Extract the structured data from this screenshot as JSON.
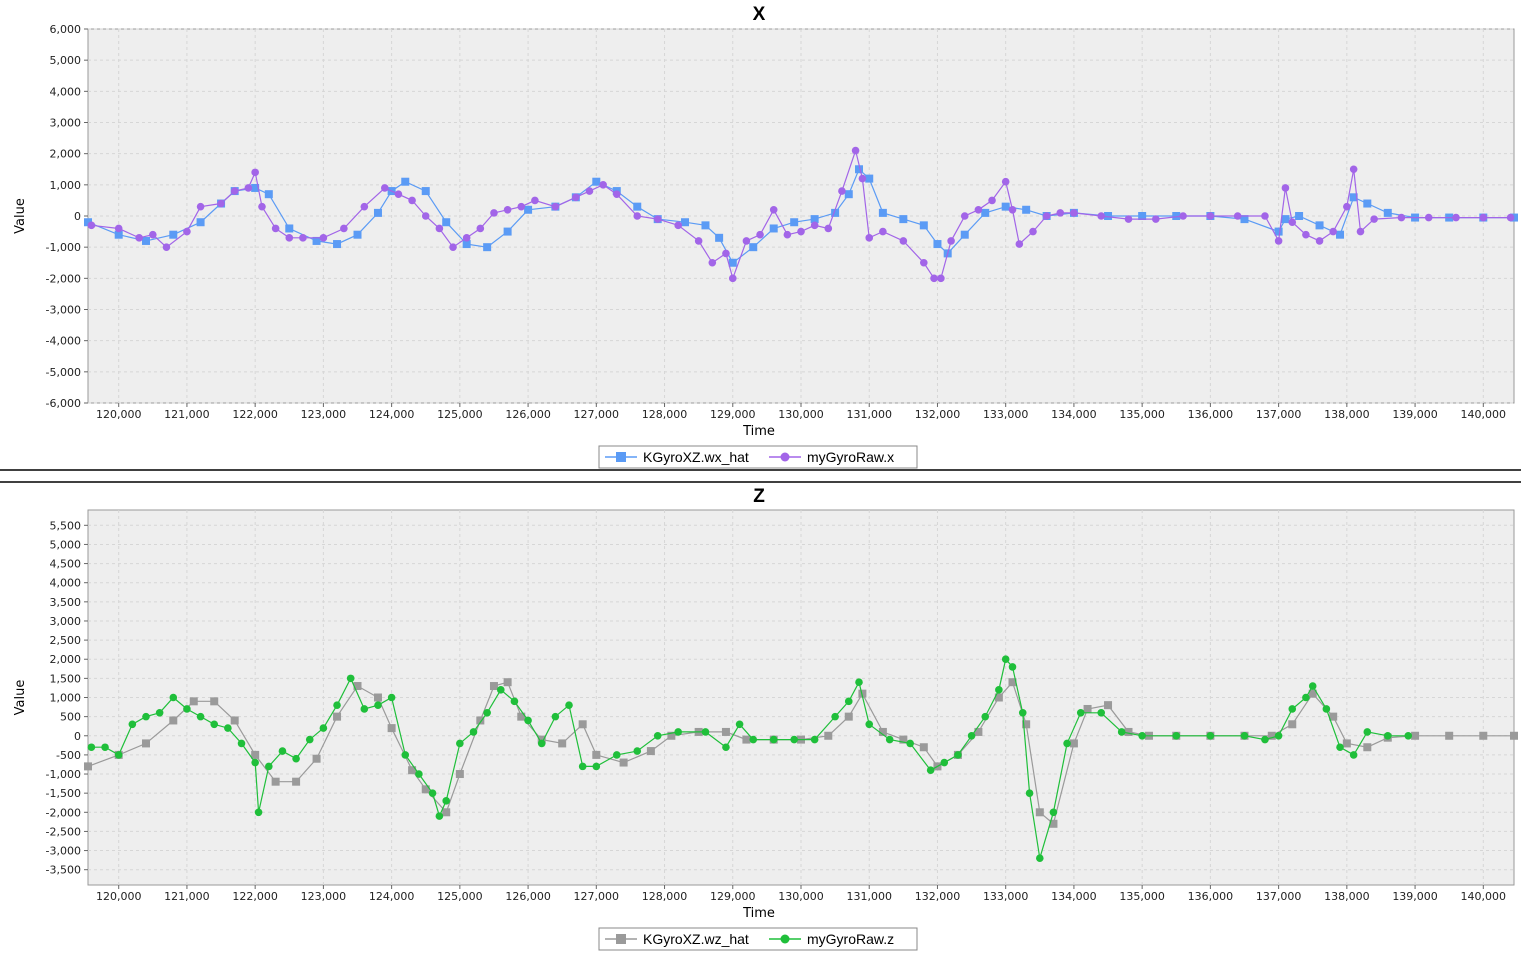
{
  "chart_data": [
    {
      "type": "line",
      "title": "X",
      "xlabel": "Time",
      "ylabel": "Value",
      "xlim": [
        119550,
        140450
      ],
      "ylim": [
        -6000,
        6000
      ],
      "x_ticks": [
        120000,
        121000,
        122000,
        123000,
        124000,
        125000,
        126000,
        127000,
        128000,
        129000,
        130000,
        131000,
        132000,
        133000,
        134000,
        135000,
        136000,
        137000,
        138000,
        139000,
        140000
      ],
      "x_tick_labels": [
        "120,000",
        "121,000",
        "122,000",
        "123,000",
        "124,000",
        "125,000",
        "126,000",
        "127,000",
        "128,000",
        "129,000",
        "130,000",
        "131,000",
        "132,000",
        "133,000",
        "134,000",
        "135,000",
        "136,000",
        "137,000",
        "138,000",
        "139,000",
        "140,000"
      ],
      "y_ticks": [
        -6000,
        -5000,
        -4000,
        -3000,
        -2000,
        -1000,
        0,
        1000,
        2000,
        3000,
        4000,
        5000,
        6000
      ],
      "y_tick_labels": [
        "-6,000",
        "-5,000",
        "-4,000",
        "-3,000",
        "-2,000",
        "-1,000",
        "0",
        "1,000",
        "2,000",
        "3,000",
        "4,000",
        "5,000",
        "6,000"
      ],
      "grid": true,
      "legend_position": "bottom-center",
      "series": [
        {
          "name": "KGyroXZ.wx_hat",
          "color": "#5b9bf5",
          "marker": "square",
          "x": [
            119550,
            120000,
            120400,
            120800,
            121200,
            121500,
            121700,
            122000,
            122200,
            122500,
            122900,
            123200,
            123500,
            123800,
            124000,
            124200,
            124500,
            124800,
            125100,
            125400,
            125700,
            126000,
            126400,
            126700,
            127000,
            127300,
            127600,
            127900,
            128300,
            128600,
            128800,
            129000,
            129300,
            129600,
            129900,
            130200,
            130500,
            130700,
            130850,
            131000,
            131200,
            131500,
            131800,
            132000,
            132150,
            132400,
            132700,
            133000,
            133300,
            133600,
            134000,
            134500,
            135000,
            135500,
            136000,
            136500,
            137000,
            137100,
            137300,
            137600,
            137900,
            138100,
            138300,
            138600,
            139000,
            139500,
            140000,
            140450
          ],
          "y": [
            -200,
            -600,
            -800,
            -600,
            -200,
            400,
            800,
            900,
            700,
            -400,
            -800,
            -900,
            -600,
            100,
            800,
            1100,
            800,
            -200,
            -900,
            -1000,
            -500,
            200,
            300,
            600,
            1100,
            800,
            300,
            -100,
            -200,
            -300,
            -700,
            -1500,
            -1000,
            -400,
            -200,
            -100,
            100,
            700,
            1500,
            1200,
            100,
            -100,
            -300,
            -900,
            -1200,
            -600,
            100,
            300,
            200,
            0,
            100,
            0,
            0,
            0,
            0,
            -100,
            -500,
            -100,
            0,
            -300,
            -600,
            600,
            400,
            100,
            -50,
            -50,
            -50,
            -50
          ]
        },
        {
          "name": "myGyroRaw.x",
          "color": "#a265e8",
          "marker": "circle",
          "x": [
            119600,
            120000,
            120300,
            120500,
            120700,
            121000,
            121200,
            121500,
            121700,
            121900,
            122000,
            122100,
            122300,
            122500,
            122700,
            123000,
            123300,
            123600,
            123900,
            124100,
            124300,
            124500,
            124700,
            124900,
            125100,
            125300,
            125500,
            125700,
            125900,
            126100,
            126400,
            126700,
            126900,
            127100,
            127300,
            127600,
            127900,
            128200,
            128500,
            128700,
            128900,
            129000,
            129200,
            129400,
            129600,
            129800,
            130000,
            130200,
            130400,
            130600,
            130800,
            130900,
            131000,
            131200,
            131500,
            131800,
            131950,
            132050,
            132200,
            132400,
            132600,
            132800,
            133000,
            133100,
            133200,
            133400,
            133600,
            133800,
            134000,
            134400,
            134800,
            135200,
            135600,
            136000,
            136400,
            136800,
            137000,
            137100,
            137200,
            137400,
            137600,
            137800,
            138000,
            138100,
            138200,
            138400,
            138800,
            139200,
            139600,
            140000,
            140400
          ],
          "y": [
            -300,
            -400,
            -700,
            -600,
            -1000,
            -500,
            300,
            400,
            800,
            900,
            1400,
            300,
            -400,
            -700,
            -700,
            -700,
            -400,
            300,
            900,
            700,
            500,
            0,
            -400,
            -1000,
            -700,
            -400,
            100,
            200,
            300,
            500,
            300,
            600,
            800,
            1000,
            700,
            0,
            -100,
            -300,
            -800,
            -1500,
            -1200,
            -2000,
            -800,
            -600,
            200,
            -600,
            -500,
            -300,
            -400,
            800,
            2100,
            1200,
            -700,
            -500,
            -800,
            -1500,
            -2000,
            -2000,
            -800,
            0,
            200,
            500,
            1100,
            200,
            -900,
            -500,
            0,
            100,
            100,
            0,
            -100,
            -100,
            0,
            0,
            0,
            0,
            -800,
            900,
            -200,
            -600,
            -800,
            -500,
            300,
            1500,
            -500,
            -100,
            -50,
            -50,
            -50,
            -50,
            -50
          ]
        }
      ]
    },
    {
      "type": "line",
      "title": "Z",
      "xlabel": "Time",
      "ylabel": "Value",
      "xlim": [
        119550,
        140450
      ],
      "ylim": [
        -3900,
        5900
      ],
      "x_ticks": [
        120000,
        121000,
        122000,
        123000,
        124000,
        125000,
        126000,
        127000,
        128000,
        129000,
        130000,
        131000,
        132000,
        133000,
        134000,
        135000,
        136000,
        137000,
        138000,
        139000,
        140000
      ],
      "x_tick_labels": [
        "120,000",
        "121,000",
        "122,000",
        "123,000",
        "124,000",
        "125,000",
        "126,000",
        "127,000",
        "128,000",
        "129,000",
        "130,000",
        "131,000",
        "132,000",
        "133,000",
        "134,000",
        "135,000",
        "136,000",
        "137,000",
        "138,000",
        "139,000",
        "140,000"
      ],
      "y_ticks": [
        -3500,
        -3000,
        -2500,
        -2000,
        -1500,
        -1000,
        -500,
        0,
        500,
        1000,
        1500,
        2000,
        2500,
        3000,
        3500,
        4000,
        4500,
        5000,
        5500
      ],
      "y_tick_labels": [
        "-3,500",
        "-3,000",
        "-2,500",
        "-2,000",
        "-1,500",
        "-1,000",
        "-500",
        "0",
        "500",
        "1,000",
        "1,500",
        "2,000",
        "2,500",
        "3,000",
        "3,500",
        "4,000",
        "4,500",
        "5,000",
        "5,500"
      ],
      "grid": true,
      "legend_position": "bottom-center",
      "series": [
        {
          "name": "KGyroXZ.wz_hat",
          "color": "#9a9a9a",
          "marker": "square",
          "x": [
            119550,
            120000,
            120400,
            120800,
            121100,
            121400,
            121700,
            122000,
            122300,
            122600,
            122900,
            123200,
            123500,
            123800,
            124000,
            124300,
            124500,
            124800,
            125000,
            125300,
            125500,
            125700,
            125900,
            126200,
            126500,
            126800,
            127000,
            127400,
            127800,
            128100,
            128500,
            128900,
            129200,
            129600,
            130000,
            130400,
            130700,
            130900,
            131200,
            131500,
            131800,
            132000,
            132300,
            132600,
            132900,
            133100,
            133300,
            133500,
            133700,
            134000,
            134200,
            134500,
            134800,
            135100,
            135500,
            136000,
            136500,
            136900,
            137200,
            137500,
            137800,
            138000,
            138300,
            138600,
            139000,
            139500,
            140000,
            140450
          ],
          "y": [
            -800,
            -500,
            -200,
            400,
            900,
            900,
            400,
            -500,
            -1200,
            -1200,
            -600,
            500,
            1300,
            1000,
            200,
            -900,
            -1400,
            -2000,
            -1000,
            400,
            1300,
            1400,
            500,
            -100,
            -200,
            300,
            -500,
            -700,
            -400,
            0,
            100,
            100,
            -100,
            -100,
            -100,
            0,
            500,
            1100,
            100,
            -100,
            -300,
            -800,
            -500,
            100,
            1000,
            1400,
            300,
            -2000,
            -2300,
            -200,
            700,
            800,
            100,
            0,
            0,
            0,
            0,
            0,
            300,
            1100,
            500,
            -200,
            -300,
            -50,
            0,
            0,
            0,
            0
          ]
        },
        {
          "name": "myGyroRaw.z",
          "color": "#1fbf3a",
          "marker": "circle",
          "x": [
            119600,
            119800,
            120000,
            120200,
            120400,
            120600,
            120800,
            121000,
            121200,
            121400,
            121600,
            121800,
            122000,
            122050,
            122200,
            122400,
            122600,
            122800,
            123000,
            123200,
            123400,
            123600,
            123800,
            124000,
            124200,
            124400,
            124600,
            124700,
            124800,
            125000,
            125200,
            125400,
            125600,
            125800,
            126000,
            126200,
            126400,
            126600,
            126800,
            127000,
            127300,
            127600,
            127900,
            128200,
            128600,
            128900,
            129100,
            129300,
            129600,
            129900,
            130200,
            130500,
            130700,
            130850,
            131000,
            131300,
            131600,
            131900,
            132100,
            132300,
            132500,
            132700,
            132900,
            133000,
            133100,
            133250,
            133350,
            133500,
            133700,
            133900,
            134100,
            134400,
            134700,
            135000,
            135500,
            136000,
            136500,
            136800,
            137000,
            137200,
            137400,
            137500,
            137700,
            137900,
            138100,
            138300,
            138600,
            138900
          ],
          "y": [
            -300,
            -300,
            -500,
            300,
            500,
            600,
            1000,
            700,
            500,
            300,
            200,
            -200,
            -700,
            -2000,
            -800,
            -400,
            -600,
            -100,
            200,
            800,
            1500,
            700,
            800,
            1000,
            -500,
            -1000,
            -1500,
            -2100,
            -1700,
            -200,
            100,
            600,
            1200,
            900,
            400,
            -200,
            500,
            800,
            -800,
            -800,
            -500,
            -400,
            0,
            100,
            100,
            -300,
            300,
            -100,
            -100,
            -100,
            -100,
            500,
            900,
            1400,
            300,
            -100,
            -200,
            -900,
            -700,
            -500,
            0,
            500,
            1200,
            2000,
            1800,
            600,
            -1500,
            -3200,
            -2000,
            -200,
            600,
            600,
            100,
            0,
            0,
            0,
            0,
            -100,
            0,
            700,
            1000,
            1300,
            700,
            -300,
            -500,
            100,
            0,
            0
          ]
        }
      ]
    }
  ]
}
